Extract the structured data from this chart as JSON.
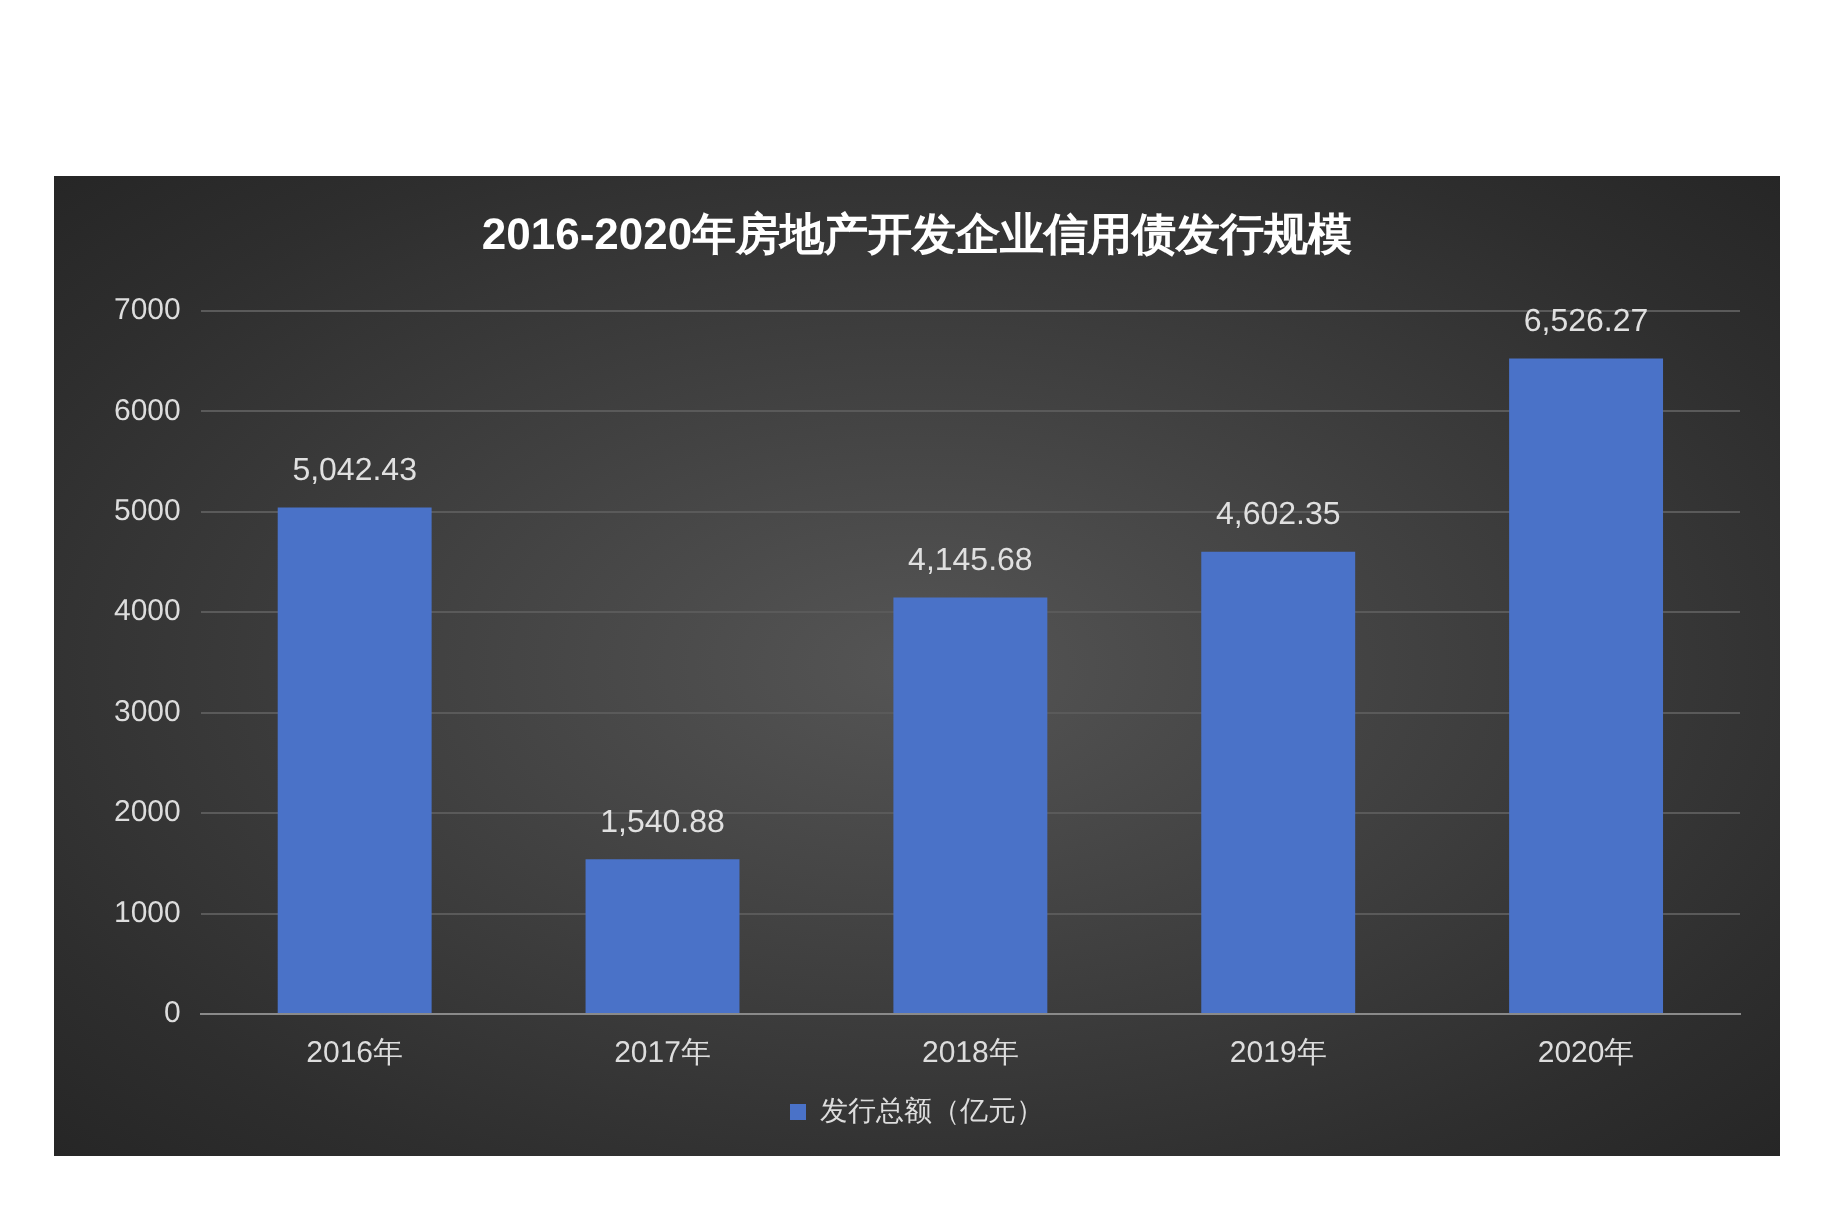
{
  "chart_data": {
    "type": "bar",
    "title": "2016-2020年房地产开发企业信用债发行规模",
    "categories": [
      "2016年",
      "2017年",
      "2018年",
      "2019年",
      "2020年"
    ],
    "series": [
      {
        "name": "发行总额（亿元）",
        "color": "#4a72c8",
        "values": [
          5042.43,
          1540.88,
          4145.68,
          4602.35,
          6526.27
        ],
        "value_labels": [
          "5,042.43",
          "1,540.88",
          "4,145.68",
          "4,602.35",
          "6,526.27"
        ]
      }
    ],
    "ylim": [
      0,
      7000
    ],
    "yticks": [
      0,
      1000,
      2000,
      3000,
      4000,
      5000,
      6000,
      7000
    ],
    "grid": "y",
    "legend": "bottom"
  }
}
